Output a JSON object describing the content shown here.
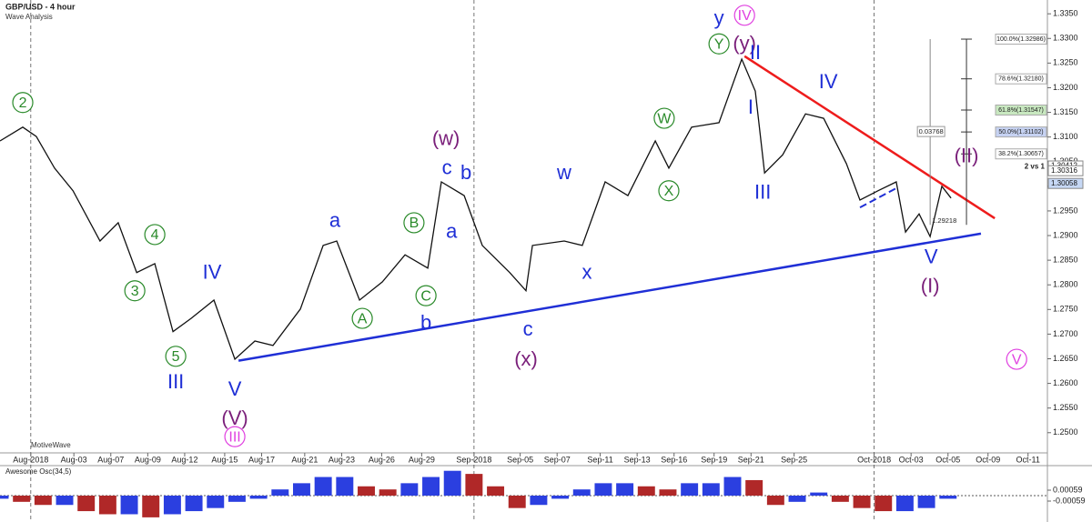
{
  "chart_data": [
    {
      "type": "line",
      "title": "GBP/USD - 4 hour",
      "subtitle": "Wave Analysis",
      "watermark": "MotiveWave",
      "color": "#111111",
      "x": [
        0,
        7.4,
        11.8,
        17.7,
        23.7,
        32.5,
        38.4,
        44.4,
        50.3,
        56.2,
        62.1,
        69.5,
        76.3,
        82.8,
        88.7,
        97.6,
        105,
        109.4,
        116.8,
        124.2,
        131.6,
        139,
        143.4,
        150.8,
        156.7,
        165.6,
        170.9,
        173,
        183.3,
        189.2,
        196.6,
        204,
        212.9,
        217.3,
        224.7,
        233.6,
        241,
        245.4,
        248.4,
        254.3,
        261.7,
        267.6,
        275,
        279.4,
        285.3,
        291.2,
        294.2,
        298.6,
        302.2,
        306,
        309
      ],
      "values": [
        1.3092,
        1.312,
        1.3101,
        1.3037,
        1.2991,
        1.2889,
        1.2926,
        1.2825,
        1.2843,
        1.2705,
        1.2732,
        1.2769,
        1.2649,
        1.2686,
        1.2677,
        1.2751,
        1.288,
        1.2889,
        1.2769,
        1.2806,
        1.2861,
        1.2834,
        1.3009,
        1.2981,
        1.288,
        1.2825,
        1.2788,
        1.288,
        1.2889,
        1.288,
        1.3009,
        1.2981,
        1.3092,
        1.3037,
        1.312,
        1.3129,
        1.3258,
        1.3193,
        1.3027,
        1.3064,
        1.3147,
        1.3138,
        1.3046,
        1.2972,
        1.2991,
        1.3009,
        1.2907,
        1.2944,
        1.2898,
        1.3,
        1.2976
      ],
      "xlim": [
        0,
        340
      ],
      "ylim": [
        1.2459,
        1.3378
      ],
      "yticks": [
        {
          "value": 1.335,
          "label": "1.3350"
        },
        {
          "value": 1.33,
          "label": "1.3300"
        },
        {
          "value": 1.325,
          "label": "1.3250"
        },
        {
          "value": 1.32,
          "label": "1.3200"
        },
        {
          "value": 1.315,
          "label": "1.3150"
        },
        {
          "value": 1.31,
          "label": "1.3100"
        },
        {
          "value": 1.305,
          "label": "1.3050"
        },
        {
          "value": 1.3,
          "label": "1.3000"
        },
        {
          "value": 1.295,
          "label": "1.2950"
        },
        {
          "value": 1.29,
          "label": "1.2900"
        },
        {
          "value": 1.285,
          "label": "1.2850"
        },
        {
          "value": 1.28,
          "label": "1.2800"
        },
        {
          "value": 1.275,
          "label": "1.2750"
        },
        {
          "value": 1.27,
          "label": "1.2700"
        },
        {
          "value": 1.265,
          "label": "1.2650"
        },
        {
          "value": 1.26,
          "label": "1.2600"
        },
        {
          "value": 1.255,
          "label": "1.2550"
        },
        {
          "value": 1.25,
          "label": "1.2500"
        }
      ],
      "xticks": [
        {
          "value": 10,
          "label": "Aug-2018"
        },
        {
          "value": 24,
          "label": "Aug-03"
        },
        {
          "value": 36,
          "label": "Aug-07"
        },
        {
          "value": 48,
          "label": "Aug-09"
        },
        {
          "value": 60,
          "label": "Aug-12"
        },
        {
          "value": 73,
          "label": "Aug-15"
        },
        {
          "value": 85,
          "label": "Aug-17"
        },
        {
          "value": 99,
          "label": "Aug-21"
        },
        {
          "value": 111,
          "label": "Aug-23"
        },
        {
          "value": 124,
          "label": "Aug-26"
        },
        {
          "value": 137,
          "label": "Aug-29"
        },
        {
          "value": 154,
          "label": "Sep-2018"
        },
        {
          "value": 169,
          "label": "Sep-05"
        },
        {
          "value": 181,
          "label": "Sep-07"
        },
        {
          "value": 195,
          "label": "Sep-11"
        },
        {
          "value": 207,
          "label": "Sep-13"
        },
        {
          "value": 219,
          "label": "Sep-16"
        },
        {
          "value": 232,
          "label": "Sep-19"
        },
        {
          "value": 244,
          "label": "Sep-21"
        },
        {
          "value": 258,
          "label": "Sep-25"
        },
        {
          "value": 284,
          "label": "Oct-2018"
        },
        {
          "value": 296,
          "label": "Oct-03"
        },
        {
          "value": 308,
          "label": "Oct-05"
        },
        {
          "value": 321,
          "label": "Oct-09"
        },
        {
          "value": 334,
          "label": "Oct-11"
        }
      ],
      "separators": [
        10,
        154,
        284
      ],
      "trendlines": [
        {
          "color": "#1f2fd6",
          "x": [
            77.5,
            318.7
          ],
          "values": [
            1.2646,
            1.2904
          ]
        },
        {
          "color": "#ee1c1c",
          "x": [
            241.9,
            323.2
          ],
          "values": [
            1.3264,
            1.2935
          ]
        },
        {
          "color": "#1f2fd6",
          "x": [
            279.4,
            291.2
          ],
          "values": [
            1.2957,
            1.2996
          ],
          "dashed": true
        }
      ],
      "annotations": [
        {
          "text": "2",
          "color": "#2a8a2a",
          "x": 7.4,
          "price": 1.317,
          "circled": true
        },
        {
          "text": "4",
          "color": "#2a8a2a",
          "x": 50.3,
          "price": 1.2902,
          "circled": true
        },
        {
          "text": "3",
          "color": "#2a8a2a",
          "x": 43.8,
          "price": 1.2788,
          "circled": true
        },
        {
          "text": "5",
          "color": "#2a8a2a",
          "x": 57.1,
          "price": 1.2655,
          "circled": true
        },
        {
          "text": "III",
          "color": "#1f2fd6",
          "x": 57.1,
          "price": 1.2603
        },
        {
          "text": "IV",
          "color": "#1f2fd6",
          "x": 68.9,
          "price": 1.2825
        },
        {
          "text": "V",
          "color": "#1f2fd6",
          "x": 76.3,
          "price": 1.2588
        },
        {
          "text": "(V)",
          "color": "#7a1f7a",
          "x": 76.3,
          "price": 1.2529
        },
        {
          "text": "III",
          "color": "#e040e0",
          "x": 76.3,
          "price": 1.2492,
          "circled": true
        },
        {
          "text": "a",
          "color": "#1f2fd6",
          "x": 108.8,
          "price": 1.293
        },
        {
          "text": "b",
          "color": "#1f2fd6",
          "x": 138.4,
          "price": 1.2723
        },
        {
          "text": "B",
          "color": "#2a8a2a",
          "x": 134.5,
          "price": 1.2926,
          "circled": true
        },
        {
          "text": "A",
          "color": "#2a8a2a",
          "x": 117.7,
          "price": 1.2732,
          "circled": true
        },
        {
          "text": "C",
          "color": "#2a8a2a",
          "x": 138.4,
          "price": 1.2778,
          "circled": true
        },
        {
          "text": "a",
          "color": "#1f2fd6",
          "x": 146.7,
          "price": 1.2908
        },
        {
          "text": "(w)",
          "color": "#7a1f7a",
          "x": 144.9,
          "price": 1.3096
        },
        {
          "text": "c",
          "color": "#1f2fd6",
          "x": 145.2,
          "price": 1.3037
        },
        {
          "text": "b",
          "color": "#1f2fd6",
          "x": 151.4,
          "price": 1.3027
        },
        {
          "text": "w",
          "color": "#1f2fd6",
          "x": 183.3,
          "price": 1.3027
        },
        {
          "text": "x",
          "color": "#1f2fd6",
          "x": 190.7,
          "price": 1.2825
        },
        {
          "text": "c",
          "color": "#1f2fd6",
          "x": 171.5,
          "price": 1.271
        },
        {
          "text": "(x)",
          "color": "#7a1f7a",
          "x": 170.9,
          "price": 1.2649
        },
        {
          "text": "W",
          "color": "#2a8a2a",
          "x": 215.8,
          "price": 1.3138,
          "circled": true
        },
        {
          "text": "X",
          "color": "#2a8a2a",
          "x": 217.3,
          "price": 1.2991,
          "circled": true
        },
        {
          "text": "y",
          "color": "#1f2fd6",
          "x": 233.6,
          "price": 1.3341
        },
        {
          "text": "IV",
          "color": "#e040e0",
          "x": 241.9,
          "price": 1.3347,
          "circled": true
        },
        {
          "text": "Y",
          "color": "#2a8a2a",
          "x": 233.6,
          "price": 1.3289,
          "circled": true
        },
        {
          "text": "(y)",
          "color": "#7a1f7a",
          "x": 241.9,
          "price": 1.3289
        },
        {
          "text": "II",
          "color": "#1f2fd6",
          "x": 245.4,
          "price": 1.3271
        },
        {
          "text": "I",
          "color": "#1f2fd6",
          "x": 243.9,
          "price": 1.316
        },
        {
          "text": "III",
          "color": "#1f2fd6",
          "x": 247.8,
          "price": 1.2987
        },
        {
          "text": "IV",
          "color": "#1f2fd6",
          "x": 269.1,
          "price": 1.3212
        },
        {
          "text": "(II)",
          "color": "#7a1f7a",
          "x": 314,
          "price": 1.3061
        },
        {
          "text": "V",
          "color": "#1f2fd6",
          "x": 302.5,
          "price": 1.2856
        },
        {
          "text": "(I)",
          "color": "#7a1f7a",
          "x": 302.2,
          "price": 1.2797
        },
        {
          "text": "V",
          "color": "#e040e0",
          "x": 330.3,
          "price": 1.2649,
          "circled": true
        }
      ],
      "fib": {
        "x": 314,
        "range_x": 302.2,
        "range": 0.03768,
        "note": "2 vs 1",
        "low": {
          "value": 1.29218,
          "label": "1.29218"
        },
        "levels": [
          {
            "value": 1.32986,
            "label": "100.0%(1.32986)"
          },
          {
            "value": 1.3218,
            "label": "78.6%(1.32180)"
          },
          {
            "value": 1.31547,
            "label": "61.8%(1.31547)",
            "fill": "#c8e8c0"
          },
          {
            "value": 1.31102,
            "label": "50.0%(1.31102)",
            "fill": "#c6d2f2"
          },
          {
            "value": 1.30657,
            "label": "38.2%(1.30657)"
          }
        ]
      },
      "price_labels": [
        {
          "value": 1.30412
        },
        {
          "value": 1.30316
        },
        {
          "value": 1.30058,
          "fill": "#c6d8f5"
        }
      ]
    },
    {
      "type": "bar",
      "title": "Awesome Osc(34,5)",
      "up_color": "#2b3fe0",
      "down_color": "#b02828",
      "x": [
        0,
        7,
        14,
        21,
        28,
        35,
        42,
        49,
        56,
        63,
        70,
        77,
        84,
        91,
        98,
        105,
        112,
        119,
        126,
        133,
        140,
        147,
        154,
        161,
        168,
        175,
        182,
        189,
        196,
        203,
        210,
        217,
        224,
        231,
        238,
        245,
        252,
        259,
        266,
        273,
        280,
        287,
        294,
        301,
        308
      ],
      "values": [
        -0.001,
        -0.002,
        -0.003,
        -0.003,
        -0.005,
        -0.006,
        -0.006,
        -0.007,
        -0.006,
        -0.005,
        -0.004,
        -0.002,
        -0.001,
        0.002,
        0.004,
        0.006,
        0.006,
        0.003,
        0.002,
        0.004,
        0.006,
        0.008,
        0.007,
        0.003,
        -0.004,
        -0.003,
        -0.001,
        0.002,
        0.004,
        0.004,
        0.003,
        0.002,
        0.004,
        0.004,
        0.006,
        0.005,
        -0.003,
        -0.002,
        0.001,
        -0.002,
        -0.004,
        -0.005,
        -0.005,
        -0.004,
        -0.001
      ],
      "xlim": [
        0,
        340
      ],
      "ylim": [
        -0.0085,
        0.0085
      ],
      "yticks": [
        0.00059,
        -0.00059
      ]
    }
  ]
}
